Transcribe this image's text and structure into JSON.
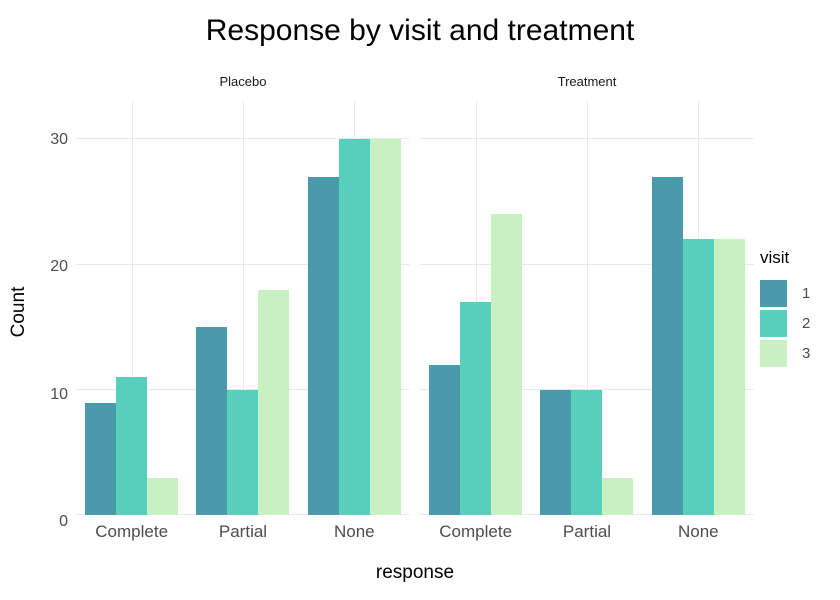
{
  "chart_data": {
    "type": "bar",
    "title": "Response by visit and treatment",
    "xlabel": "response",
    "ylabel": "Count",
    "categories": [
      "Complete",
      "Partial",
      "None"
    ],
    "y_ticks": [
      0,
      10,
      20,
      30
    ],
    "ylim": [
      0,
      33
    ],
    "grid": true,
    "legend": {
      "title": "visit",
      "position": "right",
      "entries": [
        {
          "label": "1",
          "color": "#4a9aab"
        },
        {
          "label": "2",
          "color": "#58cfba"
        },
        {
          "label": "3",
          "color": "#c8f0c2"
        }
      ]
    },
    "facets": [
      {
        "label": "Placebo",
        "series": [
          {
            "name": "1",
            "values": [
              9,
              15,
              27
            ]
          },
          {
            "name": "2",
            "values": [
              11,
              10,
              30
            ]
          },
          {
            "name": "3",
            "values": [
              3,
              18,
              30
            ]
          }
        ]
      },
      {
        "label": "Treatment",
        "series": [
          {
            "name": "1",
            "values": [
              12,
              10,
              27
            ]
          },
          {
            "name": "2",
            "values": [
              17,
              10,
              22
            ]
          },
          {
            "name": "3",
            "values": [
              24,
              3,
              22
            ]
          }
        ]
      }
    ],
    "colors": {
      "background": "#ffffff",
      "gridline": "#e9e9e9",
      "axis_text": "#4d4d4d",
      "strip_text": "#1a1a1a",
      "title_text": "#000000"
    }
  }
}
